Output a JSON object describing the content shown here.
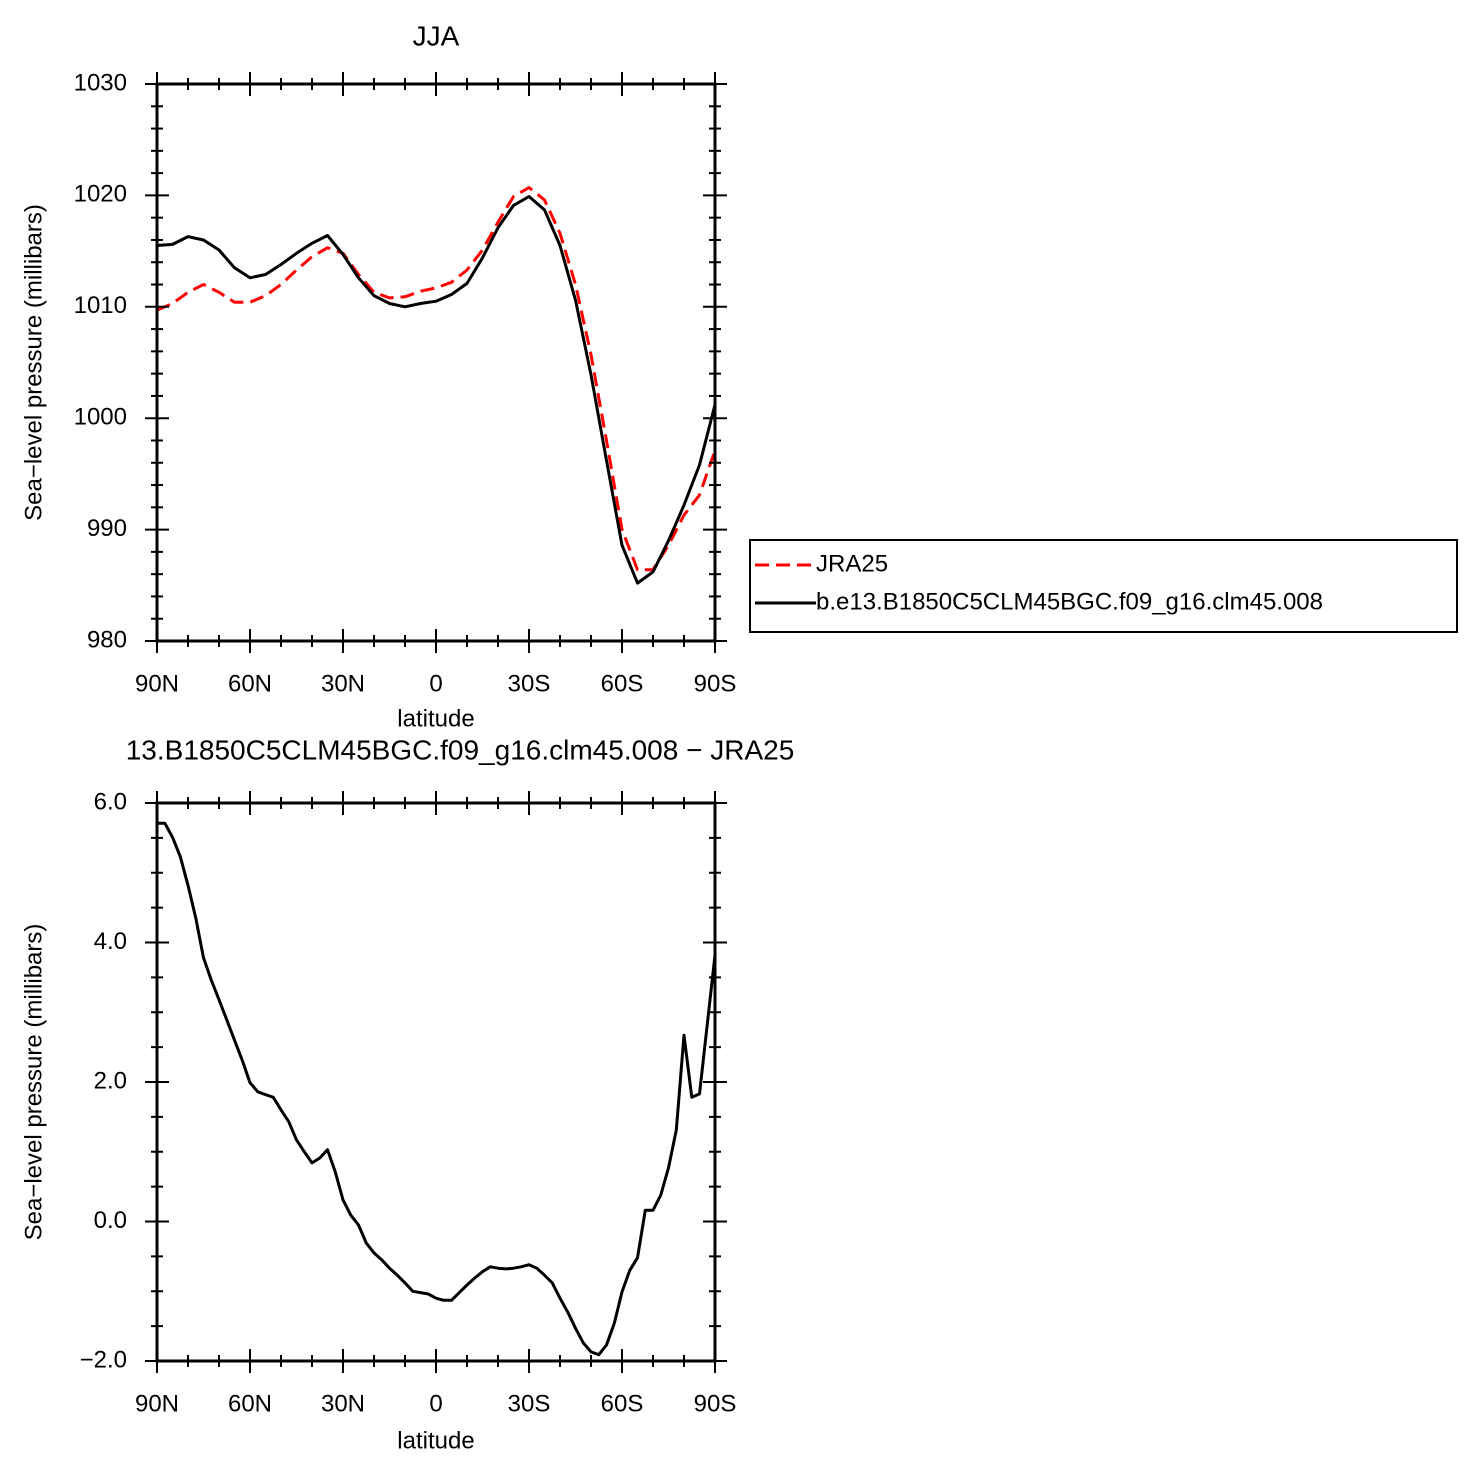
{
  "chart_data": [
    {
      "type": "line",
      "title": "JJA",
      "xlabel": "latitude",
      "ylabel": "Sea−level pressure (millibars)",
      "x": [
        90,
        85,
        80,
        75,
        70,
        65,
        60,
        55,
        50,
        45,
        40,
        35,
        30,
        25,
        20,
        15,
        10,
        5,
        0,
        -5,
        -10,
        -15,
        -20,
        -25,
        -30,
        -35,
        -40,
        -45,
        -50,
        -55,
        -60,
        -65,
        -70,
        -75,
        -80,
        -85,
        -90
      ],
      "series": [
        {
          "name": "JRA25",
          "color": "#ff0000",
          "dash": true,
          "values": [
            1009.7,
            1010.3,
            1011.3,
            1012,
            1011.3,
            1010.4,
            1010.4,
            1011,
            1012,
            1013.3,
            1014.5,
            1015.3,
            1014.8,
            1012.9,
            1011.3,
            1010.8,
            1010.9,
            1011.4,
            1011.7,
            1012.2,
            1013.3,
            1015.1,
            1017.6,
            1019.9,
            1020.7,
            1019.6,
            1016.6,
            1012,
            1005.7,
            998,
            990,
            986.4,
            986.4,
            988.6,
            991.3,
            993.1,
            997.1
          ]
        },
        {
          "name": "b.e13.B1850C5CLM45BGC.f09_g16.clm45.008",
          "color": "#000000",
          "dash": false,
          "values": [
            1015.5,
            1015.6,
            1016.3,
            1016,
            1015.1,
            1013.5,
            1012.6,
            1012.9,
            1013.8,
            1014.8,
            1015.7,
            1016.4,
            1014.7,
            1012.6,
            1011,
            1010.3,
            1010,
            1010.3,
            1010.5,
            1011.1,
            1012.1,
            1014.4,
            1017.1,
            1019.1,
            1019.9,
            1018.7,
            1015.5,
            1010.6,
            1003.9,
            996.2,
            988.6,
            985.2,
            986.2,
            989,
            992.2,
            995.8,
            1001.2
          ]
        }
      ],
      "xlim": [
        90,
        -90
      ],
      "xticks": [
        {
          "value": 90,
          "label": "90N"
        },
        {
          "value": 60,
          "label": "60N"
        },
        {
          "value": 30,
          "label": "30N"
        },
        0,
        {
          "value": -30,
          "label": "30S"
        },
        {
          "value": -60,
          "label": "60S"
        },
        {
          "value": -90,
          "label": "90S"
        }
      ],
      "minor_xticks": [
        80,
        70,
        50,
        40,
        20,
        10,
        -10,
        -20,
        -40,
        -50,
        -70,
        -80
      ],
      "ylim": [
        980,
        1030
      ],
      "yticks": [
        980,
        990,
        1000,
        1010,
        1020,
        1030
      ],
      "minor_yticks": [
        982,
        984,
        986,
        988,
        992,
        994,
        996,
        998,
        1002,
        1004,
        1006,
        1008,
        1012,
        1014,
        1016,
        1018,
        1022,
        1024,
        1026,
        1028
      ],
      "legend": "right"
    },
    {
      "type": "line",
      "title": "13.B1850C5CLM45BGC.f09_g16.clm45.008 − JRA25",
      "xlabel": "latitude",
      "ylabel": "Sea−level pressure (millibars)",
      "x": [
        90,
        87.5,
        85,
        82.5,
        80,
        77.5,
        75,
        72.5,
        70,
        67.5,
        65,
        62.5,
        60,
        57.5,
        55,
        52.5,
        50,
        47.5,
        45,
        42.5,
        40,
        37.5,
        35,
        32.5,
        30,
        27.5,
        25,
        22.5,
        20,
        17.5,
        15,
        12.5,
        10,
        7.5,
        5,
        2.5,
        0,
        -2.5,
        -5,
        -7.5,
        -10,
        -12.5,
        -15,
        -17.5,
        -20,
        -22.5,
        -25,
        -27.5,
        -30,
        -32.5,
        -35,
        -37.5,
        -40,
        -42.5,
        -45,
        -47.5,
        -50,
        -52.5,
        -55,
        -57.5,
        -60,
        -62.5,
        -65,
        -67.5,
        -70,
        -72.5,
        -75,
        -77.5,
        -80,
        -82.5,
        -85,
        -90
      ],
      "series": [
        {
          "color": "#000000",
          "dash": false,
          "values": [
            5.71,
            5.71,
            5.51,
            5.23,
            4.82,
            4.35,
            3.78,
            3.46,
            3.18,
            2.89,
            2.6,
            2.31,
            1.99,
            1.86,
            1.82,
            1.78,
            1.6,
            1.43,
            1.17,
            1.0,
            0.84,
            0.91,
            1.03,
            0.71,
            0.31,
            0.09,
            -0.05,
            -0.31,
            -0.45,
            -0.55,
            -0.67,
            -0.77,
            -0.88,
            -1.0,
            -1.02,
            -1.04,
            -1.1,
            -1.13,
            -1.13,
            -1.02,
            -0.91,
            -0.81,
            -0.72,
            -0.65,
            -0.67,
            -0.68,
            -0.67,
            -0.65,
            -0.62,
            -0.67,
            -0.77,
            -0.88,
            -1.1,
            -1.3,
            -1.53,
            -1.74,
            -1.87,
            -1.91,
            -1.77,
            -1.46,
            -1.01,
            -0.7,
            -0.52,
            0.16,
            0.16,
            0.38,
            0.77,
            1.31,
            2.67,
            1.78,
            1.83,
            3.82
          ]
        }
      ],
      "xlim": [
        90,
        -90
      ],
      "xticks": [
        {
          "value": 90,
          "label": "90N"
        },
        {
          "value": 60,
          "label": "60N"
        },
        {
          "value": 30,
          "label": "30N"
        },
        0,
        {
          "value": -30,
          "label": "30S"
        },
        {
          "value": -60,
          "label": "60S"
        },
        {
          "value": -90,
          "label": "90S"
        }
      ],
      "minor_xticks": [
        80,
        70,
        50,
        40,
        20,
        10,
        -10,
        -20,
        -40,
        -50,
        -70,
        -80
      ],
      "ylim": [
        -2,
        6
      ],
      "yticks": [
        {
          "value": -2,
          "label": "−2.0"
        },
        {
          "value": 0,
          "label": "0.0"
        },
        {
          "value": 2,
          "label": "2.0"
        },
        {
          "value": 4,
          "label": "4.0"
        },
        {
          "value": 6,
          "label": "6.0"
        }
      ],
      "minor_yticks": [
        -1.5,
        -1,
        -0.5,
        0.5,
        1,
        1.5,
        2.5,
        3,
        3.5,
        4.5,
        5,
        5.5
      ]
    }
  ]
}
